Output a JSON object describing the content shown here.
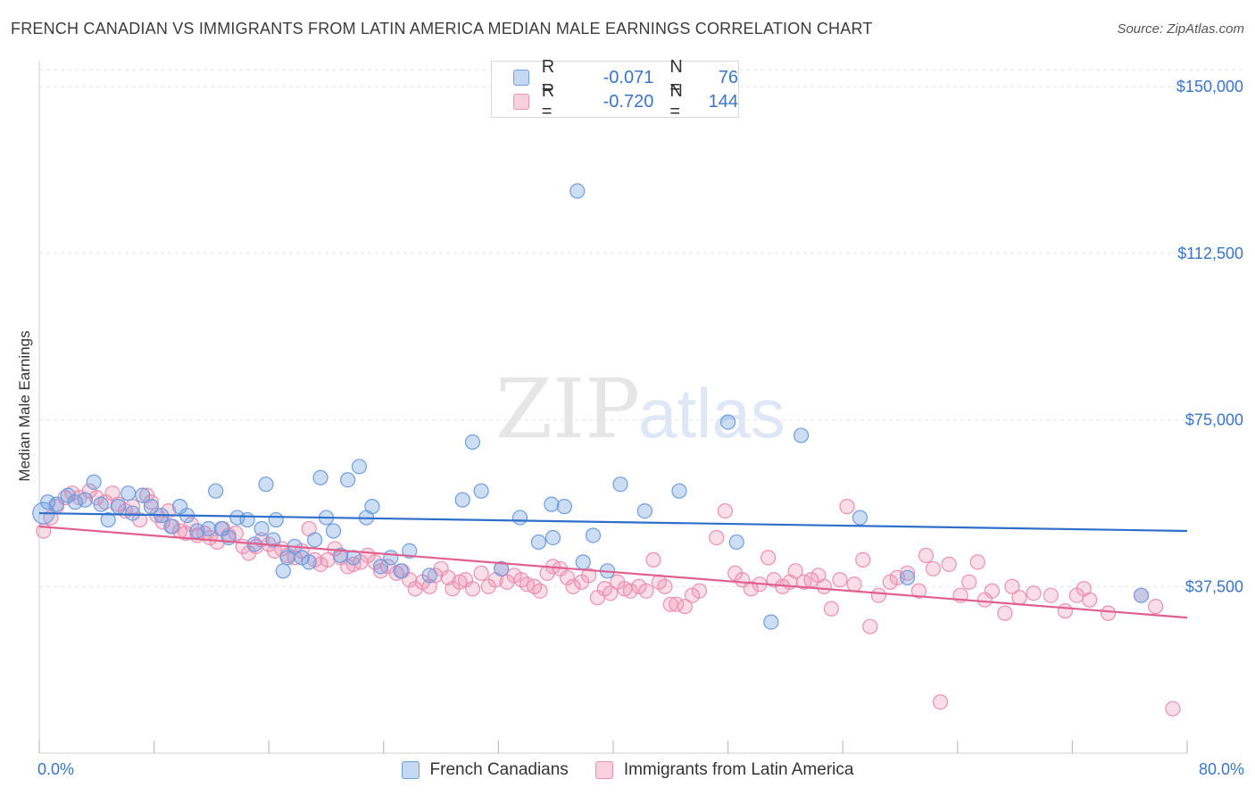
{
  "title": "FRENCH CANADIAN VS IMMIGRANTS FROM LATIN AMERICA MEDIAN MALE EARNINGS CORRELATION CHART",
  "source": "Source: ZipAtlas.com",
  "watermark": {
    "zip": "ZIP",
    "atlas": "atlas"
  },
  "legend": {
    "rows": [
      {
        "r_label": "R =",
        "r_value": "-0.071",
        "n_label": "N =",
        "n_value": "76",
        "color": "#6e9de0"
      },
      {
        "r_label": "R =",
        "r_value": "-0.720",
        "n_label": "N =",
        "n_value": "144",
        "color": "#ec8fb0"
      }
    ]
  },
  "bottom_legend": [
    "French Canadians",
    "Immigrants from Latin America"
  ],
  "x_axis": {
    "min_label": "0.0%",
    "max_label": "80.0%"
  },
  "chart_data": {
    "type": "scatter",
    "xlabel": "",
    "ylabel": "Median Male Earnings",
    "xlim": [
      0,
      80
    ],
    "ylim": [
      0,
      155000
    ],
    "y_ticks": [
      {
        "value": 37500,
        "label": "$37,500"
      },
      {
        "value": 75000,
        "label": "$75,000"
      },
      {
        "value": 112500,
        "label": "$112,500"
      },
      {
        "value": 150000,
        "label": "$150,000"
      }
    ],
    "grid": true,
    "series": [
      {
        "name": "French Canadians",
        "color": "#6e9de0",
        "trend": {
          "x": [
            0,
            80
          ],
          "y": [
            54000,
            50000
          ]
        },
        "points": [
          [
            0.3,
            54000
          ],
          [
            0.6,
            56500
          ],
          [
            1.2,
            56000
          ],
          [
            2.0,
            58000
          ],
          [
            2.5,
            56500
          ],
          [
            3.2,
            57000
          ],
          [
            3.8,
            61000
          ],
          [
            4.3,
            56000
          ],
          [
            4.8,
            52500
          ],
          [
            5.5,
            55500
          ],
          [
            6.2,
            58500
          ],
          [
            6.5,
            54000
          ],
          [
            7.2,
            58000
          ],
          [
            7.8,
            55500
          ],
          [
            8.5,
            53500
          ],
          [
            9.2,
            51000
          ],
          [
            9.8,
            55500
          ],
          [
            10.3,
            53500
          ],
          [
            11.0,
            50000
          ],
          [
            11.8,
            50500
          ],
          [
            12.3,
            59000
          ],
          [
            12.7,
            50500
          ],
          [
            13.2,
            48500
          ],
          [
            13.8,
            53000
          ],
          [
            14.5,
            52500
          ],
          [
            15.0,
            47000
          ],
          [
            15.5,
            50500
          ],
          [
            15.8,
            60500
          ],
          [
            16.3,
            48000
          ],
          [
            16.5,
            52500
          ],
          [
            17.0,
            41000
          ],
          [
            17.3,
            44000
          ],
          [
            17.8,
            46500
          ],
          [
            18.3,
            44000
          ],
          [
            18.8,
            43000
          ],
          [
            19.2,
            48000
          ],
          [
            19.6,
            62000
          ],
          [
            20.0,
            53000
          ],
          [
            20.5,
            50000
          ],
          [
            21.0,
            44500
          ],
          [
            21.5,
            61500
          ],
          [
            21.9,
            44000
          ],
          [
            22.3,
            64500
          ],
          [
            22.8,
            53000
          ],
          [
            23.2,
            55500
          ],
          [
            23.8,
            42000
          ],
          [
            24.5,
            44000
          ],
          [
            25.2,
            41000
          ],
          [
            25.8,
            45500
          ],
          [
            27.2,
            40000
          ],
          [
            29.5,
            57000
          ],
          [
            30.2,
            70000
          ],
          [
            30.8,
            59000
          ],
          [
            32.2,
            41500
          ],
          [
            33.5,
            53000
          ],
          [
            34.8,
            47500
          ],
          [
            35.8,
            48500
          ],
          [
            35.7,
            56000
          ],
          [
            36.6,
            55500
          ],
          [
            37.5,
            126500
          ],
          [
            37.9,
            43000
          ],
          [
            38.6,
            49000
          ],
          [
            39.6,
            41000
          ],
          [
            40.5,
            60500
          ],
          [
            42.2,
            54500
          ],
          [
            44.6,
            59000
          ],
          [
            48.0,
            74500
          ],
          [
            48.6,
            47500
          ],
          [
            51.0,
            29500
          ],
          [
            53.1,
            71500
          ],
          [
            57.2,
            53000
          ],
          [
            60.5,
            39500
          ],
          [
            76.8,
            35500
          ]
        ]
      },
      {
        "name": "Immigrants from Latin America",
        "color": "#ec8fb0",
        "trend": {
          "x": [
            0,
            80
          ],
          "y": [
            51000,
            30500
          ]
        },
        "points": [
          [
            0.3,
            50000
          ],
          [
            0.8,
            53000
          ],
          [
            1.2,
            55500
          ],
          [
            1.8,
            57500
          ],
          [
            2.3,
            58500
          ],
          [
            2.8,
            57500
          ],
          [
            3.5,
            59000
          ],
          [
            4.0,
            57500
          ],
          [
            4.6,
            56500
          ],
          [
            5.1,
            58500
          ],
          [
            5.5,
            56000
          ],
          [
            6.0,
            54500
          ],
          [
            6.5,
            55500
          ],
          [
            7.0,
            52500
          ],
          [
            7.5,
            58000
          ],
          [
            7.8,
            56500
          ],
          [
            8.2,
            53500
          ],
          [
            8.6,
            52000
          ],
          [
            9.0,
            54500
          ],
          [
            9.3,
            51000
          ],
          [
            9.8,
            50000
          ],
          [
            10.2,
            49500
          ],
          [
            10.6,
            51500
          ],
          [
            11.0,
            49000
          ],
          [
            11.5,
            49500
          ],
          [
            11.9,
            48500
          ],
          [
            12.4,
            47500
          ],
          [
            12.8,
            50500
          ],
          [
            13.2,
            49000
          ],
          [
            13.7,
            49500
          ],
          [
            14.2,
            46500
          ],
          [
            14.6,
            45000
          ],
          [
            15.1,
            46500
          ],
          [
            15.5,
            48000
          ],
          [
            16.0,
            47000
          ],
          [
            16.4,
            45500
          ],
          [
            16.9,
            46000
          ],
          [
            17.3,
            44500
          ],
          [
            17.8,
            44000
          ],
          [
            18.3,
            45500
          ],
          [
            18.8,
            50500
          ],
          [
            19.2,
            43500
          ],
          [
            19.6,
            42500
          ],
          [
            20.1,
            43500
          ],
          [
            20.6,
            46000
          ],
          [
            21.0,
            44000
          ],
          [
            21.5,
            42000
          ],
          [
            21.9,
            42500
          ],
          [
            22.4,
            43000
          ],
          [
            22.9,
            44500
          ],
          [
            23.4,
            43000
          ],
          [
            23.8,
            41000
          ],
          [
            24.3,
            42000
          ],
          [
            24.9,
            40500
          ],
          [
            25.3,
            41000
          ],
          [
            25.8,
            39000
          ],
          [
            26.2,
            37000
          ],
          [
            26.7,
            38500
          ],
          [
            27.2,
            37500
          ],
          [
            27.6,
            40000
          ],
          [
            28.0,
            41500
          ],
          [
            28.5,
            39500
          ],
          [
            28.8,
            37000
          ],
          [
            29.3,
            38500
          ],
          [
            29.7,
            39000
          ],
          [
            30.2,
            37000
          ],
          [
            30.8,
            40500
          ],
          [
            31.3,
            37500
          ],
          [
            31.8,
            39000
          ],
          [
            32.2,
            41500
          ],
          [
            32.6,
            38500
          ],
          [
            33.1,
            40000
          ],
          [
            33.6,
            39000
          ],
          [
            34.0,
            38000
          ],
          [
            34.5,
            37500
          ],
          [
            34.9,
            36500
          ],
          [
            35.4,
            40500
          ],
          [
            35.8,
            42000
          ],
          [
            36.3,
            41500
          ],
          [
            36.8,
            39500
          ],
          [
            37.2,
            37500
          ],
          [
            37.8,
            38500
          ],
          [
            38.3,
            40000
          ],
          [
            38.9,
            35000
          ],
          [
            39.4,
            37000
          ],
          [
            39.8,
            36000
          ],
          [
            40.3,
            38500
          ],
          [
            40.8,
            37000
          ],
          [
            41.2,
            36500
          ],
          [
            41.8,
            37500
          ],
          [
            42.3,
            36500
          ],
          [
            42.8,
            43500
          ],
          [
            43.2,
            38500
          ],
          [
            43.6,
            37500
          ],
          [
            44.0,
            33500
          ],
          [
            44.4,
            33500
          ],
          [
            45.0,
            33000
          ],
          [
            45.5,
            35500
          ],
          [
            46.0,
            36500
          ],
          [
            47.2,
            48500
          ],
          [
            47.8,
            54500
          ],
          [
            48.5,
            40500
          ],
          [
            49.0,
            39000
          ],
          [
            49.6,
            37000
          ],
          [
            50.2,
            38000
          ],
          [
            50.8,
            44000
          ],
          [
            51.2,
            39000
          ],
          [
            51.8,
            37500
          ],
          [
            52.3,
            38500
          ],
          [
            52.7,
            41000
          ],
          [
            53.3,
            38500
          ],
          [
            53.8,
            39000
          ],
          [
            54.3,
            40000
          ],
          [
            54.7,
            37500
          ],
          [
            55.2,
            32500
          ],
          [
            55.8,
            39000
          ],
          [
            56.3,
            55500
          ],
          [
            56.8,
            38000
          ],
          [
            57.4,
            43500
          ],
          [
            57.9,
            28500
          ],
          [
            58.5,
            35500
          ],
          [
            59.3,
            38500
          ],
          [
            59.8,
            39500
          ],
          [
            60.5,
            40500
          ],
          [
            61.3,
            36500
          ],
          [
            61.8,
            44500
          ],
          [
            62.3,
            41500
          ],
          [
            62.8,
            11500
          ],
          [
            63.4,
            42500
          ],
          [
            64.2,
            35500
          ],
          [
            64.8,
            38500
          ],
          [
            65.4,
            43000
          ],
          [
            65.9,
            34500
          ],
          [
            66.4,
            36500
          ],
          [
            67.3,
            31500
          ],
          [
            67.8,
            37500
          ],
          [
            68.3,
            35000
          ],
          [
            69.3,
            36000
          ],
          [
            70.5,
            35500
          ],
          [
            71.5,
            32000
          ],
          [
            72.3,
            35500
          ],
          [
            72.8,
            37000
          ],
          [
            73.2,
            34500
          ],
          [
            74.5,
            31500
          ],
          [
            76.8,
            35500
          ],
          [
            77.8,
            33000
          ],
          [
            79.0,
            10000
          ]
        ]
      }
    ]
  }
}
